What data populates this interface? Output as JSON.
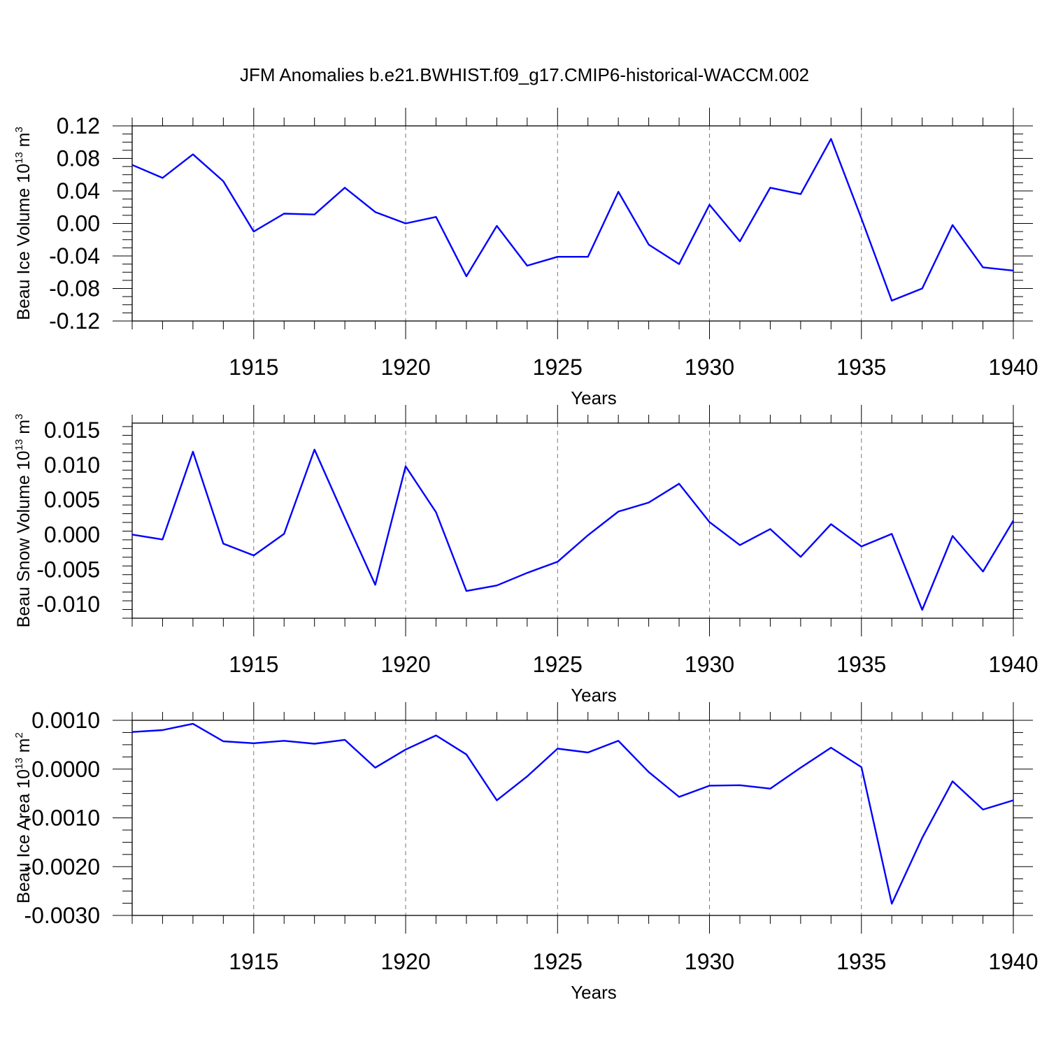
{
  "figure": {
    "title": "JFM Anomalies b.e21.BWHIST.f09_g17.CMIP6-historical-WACCM.002",
    "line_color": "#0000ff"
  },
  "chart_data": [
    {
      "type": "line",
      "title": "",
      "xlabel": "Years",
      "ylabel": "Beau Ice Volume 10",
      "ylabel_exponent": "13",
      "ylabel_unit": " m",
      "ylabel_unit_exponent": "3",
      "xlim": [
        1911,
        1940
      ],
      "ylim": [
        -0.12,
        0.12
      ],
      "x_ticks": [
        1915,
        1920,
        1925,
        1930,
        1935,
        1940
      ],
      "x_tick_labels": [
        "1915",
        "1920",
        "1925",
        "1930",
        "1935",
        "1940"
      ],
      "y_ticks": [
        0.12,
        0.08,
        0.04,
        0.0,
        -0.04,
        -0.08,
        -0.12
      ],
      "y_tick_labels": [
        "0.12",
        "0.08",
        "0.04",
        "0.00",
        "-0.04",
        "-0.08",
        "-0.12"
      ],
      "grid": "vertical dashed at major x ticks",
      "x": [
        1911,
        1912,
        1913,
        1914,
        1915,
        1916,
        1917,
        1918,
        1919,
        1920,
        1921,
        1922,
        1923,
        1924,
        1925,
        1926,
        1927,
        1928,
        1929,
        1930,
        1931,
        1932,
        1933,
        1934,
        1935,
        1936,
        1937,
        1938,
        1939,
        1940
      ],
      "series": [
        {
          "name": "Beau Ice Volume",
          "values": [
            0.072,
            0.056,
            0.085,
            0.052,
            -0.01,
            0.012,
            0.011,
            0.044,
            0.014,
            0.0,
            0.008,
            -0.065,
            -0.003,
            -0.052,
            -0.041,
            -0.041,
            0.039,
            -0.026,
            -0.05,
            0.023,
            -0.022,
            0.044,
            0.036,
            0.104,
            0.006,
            -0.095,
            -0.08,
            -0.002,
            -0.054,
            -0.058
          ]
        }
      ]
    },
    {
      "type": "line",
      "title": "",
      "xlabel": "Years",
      "ylabel": "Beau Snow Volume 10",
      "ylabel_exponent": "13",
      "ylabel_unit": " m",
      "ylabel_unit_exponent": "3",
      "xlim": [
        1911,
        1940
      ],
      "ylim": [
        -0.012,
        0.016
      ],
      "x_ticks": [
        1915,
        1920,
        1925,
        1930,
        1935,
        1940
      ],
      "x_tick_labels": [
        "1915",
        "1920",
        "1925",
        "1930",
        "1935",
        "1940"
      ],
      "y_ticks": [
        0.015,
        0.01,
        0.005,
        0.0,
        -0.005,
        -0.01
      ],
      "y_tick_labels": [
        "0.015",
        "0.010",
        "0.005",
        "0.000",
        "-0.005",
        "-0.010"
      ],
      "grid": "vertical dashed at major x ticks",
      "x": [
        1911,
        1912,
        1913,
        1914,
        1915,
        1916,
        1917,
        1918,
        1919,
        1920,
        1921,
        1922,
        1923,
        1924,
        1925,
        1926,
        1927,
        1928,
        1929,
        1930,
        1931,
        1932,
        1933,
        1934,
        1935,
        1936,
        1937,
        1938,
        1939,
        1940
      ],
      "series": [
        {
          "name": "Beau Snow Volume",
          "values": [
            0.0,
            -0.0007,
            0.0119,
            -0.0013,
            -0.003,
            0.0001,
            0.0122,
            0.0024,
            -0.0072,
            0.0098,
            0.0032,
            -0.0081,
            -0.0073,
            -0.0055,
            -0.0039,
            -0.0001,
            0.0033,
            0.0046,
            0.0073,
            0.0018,
            -0.0015,
            0.0008,
            -0.0032,
            0.0015,
            -0.0017,
            0.0001,
            -0.0108,
            -0.0002,
            -0.0053,
            0.002
          ]
        }
      ]
    },
    {
      "type": "line",
      "title": "",
      "xlabel": "Years",
      "ylabel": "Beau Ice Area 10",
      "ylabel_exponent": "13",
      "ylabel_unit": " m",
      "ylabel_unit_exponent": "2",
      "xlim": [
        1911,
        1940
      ],
      "ylim": [
        -0.003,
        0.001
      ],
      "x_ticks": [
        1915,
        1920,
        1925,
        1930,
        1935,
        1940
      ],
      "x_tick_labels": [
        "1915",
        "1920",
        "1925",
        "1930",
        "1935",
        "1940"
      ],
      "y_ticks": [
        0.001,
        0.0,
        -0.001,
        -0.002,
        -0.003
      ],
      "y_tick_labels": [
        "0.0010",
        "0.0000",
        "-0.0010",
        "-0.0020",
        "-0.0030"
      ],
      "grid": "vertical dashed at major x ticks",
      "x": [
        1911,
        1912,
        1913,
        1914,
        1915,
        1916,
        1917,
        1918,
        1919,
        1920,
        1921,
        1922,
        1923,
        1924,
        1925,
        1926,
        1927,
        1928,
        1929,
        1930,
        1931,
        1932,
        1933,
        1934,
        1935,
        1936,
        1937,
        1938,
        1939,
        1940
      ],
      "series": [
        {
          "name": "Beau Ice Area",
          "values": [
            0.00076,
            0.0008,
            0.00093,
            0.00057,
            0.00053,
            0.00058,
            0.00052,
            0.0006,
            3e-05,
            0.0004,
            0.00069,
            0.0003,
            -0.00064,
            -0.00015,
            0.00042,
            0.00034,
            0.00058,
            -6e-05,
            -0.00057,
            -0.00034,
            -0.00033,
            -0.0004,
            3e-05,
            0.00044,
            4e-05,
            -0.00276,
            -0.00141,
            -0.00025,
            -0.00083,
            -0.00064
          ]
        }
      ]
    }
  ]
}
